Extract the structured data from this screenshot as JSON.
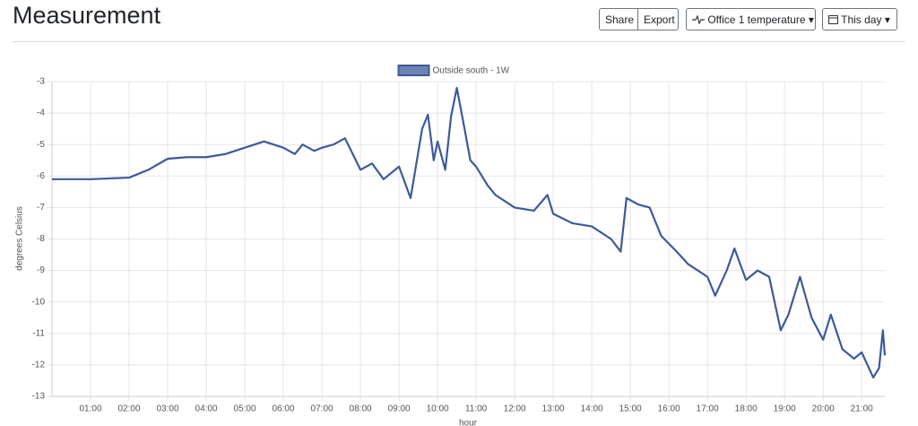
{
  "header": {
    "title": "Measurement",
    "buttons": [
      "Share",
      "Export"
    ],
    "sensor": "Office 1 temperature",
    "period": "This day"
  },
  "chart_data": {
    "type": "line",
    "legend": "top",
    "grid": true,
    "ylabel": "degrees Celsius",
    "xlabel": "hour",
    "ylim": [
      -13,
      -3
    ],
    "yticks": [
      -13,
      -12,
      -11,
      -10,
      -9,
      -8,
      -7,
      -6,
      -5,
      -4,
      -3
    ],
    "xlim": [
      0,
      21.6
    ],
    "xticks": [
      {
        "value": 1,
        "label": "01:00"
      },
      {
        "value": 2,
        "label": "02:00"
      },
      {
        "value": 3,
        "label": "03:00"
      },
      {
        "value": 4,
        "label": "04:00"
      },
      {
        "value": 5,
        "label": "05:00"
      },
      {
        "value": 6,
        "label": "06:00"
      },
      {
        "value": 7,
        "label": "07:00"
      },
      {
        "value": 8,
        "label": "08:00"
      },
      {
        "value": 9,
        "label": "09:00"
      },
      {
        "value": 10,
        "label": "10:00"
      },
      {
        "value": 11,
        "label": "11:00"
      },
      {
        "value": 12,
        "label": "12:00"
      },
      {
        "value": 13,
        "label": "13:00"
      },
      {
        "value": 14,
        "label": "14:00"
      },
      {
        "value": 15,
        "label": "15:00"
      },
      {
        "value": 16,
        "label": "16:00"
      },
      {
        "value": 17,
        "label": "17:00"
      },
      {
        "value": 18,
        "label": "18:00"
      },
      {
        "value": 19,
        "label": "19:00"
      },
      {
        "value": 20,
        "label": "20:00"
      },
      {
        "value": 21,
        "label": "21:00"
      }
    ],
    "x": [
      0,
      1,
      2,
      2.5,
      3,
      3.5,
      4,
      4.5,
      5,
      5.5,
      6,
      6.3,
      6.5,
      6.8,
      7,
      7.3,
      7.6,
      7.8,
      8,
      8.3,
      8.6,
      9,
      9.3,
      9.45,
      9.6,
      9.75,
      9.9,
      10.0,
      10.2,
      10.35,
      10.5,
      10.7,
      10.85,
      11,
      11.3,
      11.5,
      12,
      12.5,
      12.85,
      13,
      13.5,
      14,
      14.5,
      14.75,
      14.9,
      15.2,
      15.5,
      15.8,
      16.2,
      16.5,
      17,
      17.2,
      17.5,
      17.7,
      18,
      18.3,
      18.6,
      18.9,
      19.1,
      19.4,
      19.7,
      20,
      20.2,
      20.5,
      20.8,
      21,
      21.3,
      21.45,
      21.55,
      21.6
    ],
    "series": [
      {
        "name": "Outside south - 1W",
        "color": "#3d5a98",
        "values": [
          -6.1,
          -6.1,
          -6.05,
          -5.8,
          -5.45,
          -5.4,
          -5.4,
          -5.3,
          -5.1,
          -4.9,
          -5.1,
          -5.3,
          -5.0,
          -5.2,
          -5.1,
          -5.0,
          -4.8,
          -5.3,
          -5.8,
          -5.6,
          -6.1,
          -5.7,
          -6.7,
          -5.6,
          -4.5,
          -4.05,
          -5.5,
          -4.9,
          -5.8,
          -4.1,
          -3.2,
          -4.5,
          -5.5,
          -5.7,
          -6.3,
          -6.6,
          -7.0,
          -7.1,
          -6.6,
          -7.2,
          -7.5,
          -7.6,
          -8.0,
          -8.4,
          -6.7,
          -6.9,
          -7.0,
          -7.9,
          -8.4,
          -8.8,
          -9.2,
          -9.8,
          -9.0,
          -8.3,
          -9.3,
          -9.0,
          -9.2,
          -10.9,
          -10.4,
          -9.2,
          -10.5,
          -11.2,
          -10.4,
          -11.5,
          -11.8,
          -11.6,
          -12.4,
          -12.1,
          -10.9,
          -11.7
        ]
      }
    ]
  }
}
